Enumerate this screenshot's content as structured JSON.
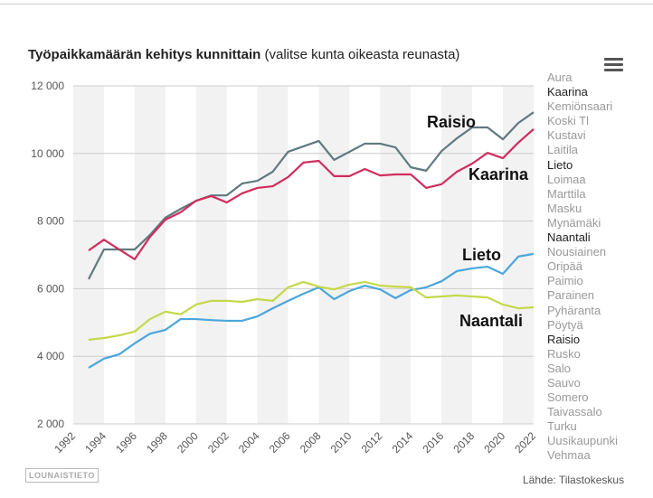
{
  "title_bold": "Työpaikkamäärän kehitys kunnittain",
  "title_rest": " (valitse kunta oikeasta reunasta)",
  "logo": "LOUNAISTIETO",
  "source": "Lähde: Tilastokeskus",
  "menu_icon": "hamburger-icon",
  "legend": [
    {
      "label": "Aura",
      "active": false
    },
    {
      "label": "Kaarina",
      "active": true
    },
    {
      "label": "Kemiönsaari",
      "active": false
    },
    {
      "label": "Koski Tl",
      "active": false
    },
    {
      "label": "Kustavi",
      "active": false
    },
    {
      "label": "Laitila",
      "active": false
    },
    {
      "label": "Lieto",
      "active": true
    },
    {
      "label": "Loimaa",
      "active": false
    },
    {
      "label": "Marttila",
      "active": false
    },
    {
      "label": "Masku",
      "active": false
    },
    {
      "label": "Mynämäki",
      "active": false
    },
    {
      "label": "Naantali",
      "active": true
    },
    {
      "label": "Nousiainen",
      "active": false
    },
    {
      "label": "Oripää",
      "active": false
    },
    {
      "label": "Paimio",
      "active": false
    },
    {
      "label": "Parainen",
      "active": false
    },
    {
      "label": "Pyhäranta",
      "active": false
    },
    {
      "label": "Pöytyä",
      "active": false
    },
    {
      "label": "Raisio",
      "active": true
    },
    {
      "label": "Rusko",
      "active": false
    },
    {
      "label": "Salo",
      "active": false
    },
    {
      "label": "Sauvo",
      "active": false
    },
    {
      "label": "Somero",
      "active": false
    },
    {
      "label": "Taivassalo",
      "active": false
    },
    {
      "label": "Turku",
      "active": false
    },
    {
      "label": "Uusikaupunki",
      "active": false
    },
    {
      "label": "Vehmaa",
      "active": false
    }
  ],
  "chart_data": {
    "type": "line",
    "title": "Työpaikkamäärän kehitys kunnittain (valitse kunta oikeasta reunasta)",
    "xlim": [
      1992,
      2022
    ],
    "ylim": [
      2000,
      12000
    ],
    "xticks": [
      "1992",
      "1994",
      "1996",
      "1998",
      "2000",
      "2002",
      "2004",
      "2006",
      "2008",
      "2010",
      "2012",
      "2014",
      "2016",
      "2018",
      "2020",
      "2022"
    ],
    "yticks": [
      {
        "v": 2000,
        "label": "2 000"
      },
      {
        "v": 4000,
        "label": "4 000"
      },
      {
        "v": 6000,
        "label": "6 000"
      },
      {
        "v": 8000,
        "label": "8 000"
      },
      {
        "v": 10000,
        "label": "10 000"
      },
      {
        "v": 12000,
        "label": "12 000"
      }
    ],
    "x": [
      1993,
      1994,
      1995,
      1996,
      1997,
      1998,
      1999,
      2000,
      2001,
      2002,
      2003,
      2004,
      2005,
      2006,
      2007,
      2008,
      2009,
      2010,
      2011,
      2012,
      2013,
      2014,
      2015,
      2016,
      2017,
      2018,
      2019,
      2020,
      2021,
      2022
    ],
    "series": [
      {
        "name": "Raisio",
        "color": "#5f7a7e",
        "label_pos": "top-right",
        "values": [
          6280,
          7160,
          7160,
          7160,
          7590,
          8100,
          8360,
          8600,
          8760,
          8760,
          9110,
          9190,
          9460,
          10050,
          10210,
          10370,
          9810,
          10050,
          10290,
          10290,
          10180,
          9590,
          9490,
          10070,
          10450,
          10770,
          10770,
          10420,
          10900,
          11220
        ]
      },
      {
        "name": "Kaarina",
        "color": "#d02e5e",
        "values": [
          7130,
          7450,
          7160,
          6870,
          7530,
          8040,
          8260,
          8600,
          8740,
          8550,
          8820,
          8980,
          9030,
          9300,
          9730,
          9780,
          9330,
          9330,
          9540,
          9350,
          9380,
          9380,
          8980,
          9090,
          9460,
          9700,
          10020,
          9860,
          10320,
          10720
        ]
      },
      {
        "name": "Lieto",
        "color": "#4aa6dc",
        "values": [
          3660,
          3930,
          4060,
          4380,
          4670,
          4780,
          5100,
          5100,
          5070,
          5050,
          5050,
          5180,
          5420,
          5640,
          5850,
          6040,
          5690,
          5930,
          6090,
          5980,
          5720,
          5960,
          6040,
          6220,
          6520,
          6600,
          6650,
          6440,
          6950,
          7030
        ]
      },
      {
        "name": "Naantali",
        "color": "#c5d84a",
        "values": [
          4490,
          4540,
          4620,
          4730,
          5100,
          5320,
          5240,
          5530,
          5640,
          5640,
          5610,
          5690,
          5640,
          6040,
          6200,
          6060,
          5980,
          6120,
          6200,
          6090,
          6060,
          6040,
          5740,
          5770,
          5800,
          5770,
          5740,
          5530,
          5420,
          5450
        ]
      }
    ]
  }
}
